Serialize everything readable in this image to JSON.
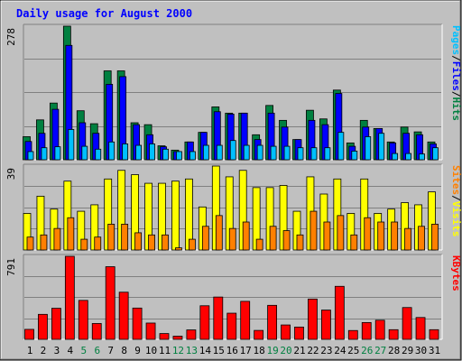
{
  "title": "Daily usage for August 2000",
  "colors": {
    "background": "#c0c0c0",
    "title": "#0000ff",
    "hits": "#008040",
    "files": "#0000ff",
    "pages": "#00c0ff",
    "visits": "#ffff00",
    "sites": "#ff8000",
    "kbytes": "#ff0000",
    "weekend_day_label": "#008040",
    "day_label": "#000000"
  },
  "chart_data": [
    {
      "type": "bar",
      "title": "Hits / Files / Pages",
      "ymax_label": "278",
      "ylim": [
        0,
        278
      ],
      "legend": [
        "Pages",
        "/",
        "Files",
        "/",
        "Hits"
      ],
      "categories": [
        "1",
        "2",
        "3",
        "4",
        "5",
        "6",
        "7",
        "8",
        "9",
        "10",
        "11",
        "12",
        "13",
        "14",
        "15",
        "16",
        "17",
        "18",
        "19",
        "20",
        "21",
        "22",
        "23",
        "24",
        "25",
        "26",
        "27",
        "28",
        "29",
        "30",
        "31"
      ],
      "series": [
        {
          "name": "Hits",
          "values": [
            48,
            83,
            118,
            278,
            102,
            75,
            185,
            185,
            77,
            73,
            29,
            20,
            37,
            57,
            110,
            97,
            97,
            52,
            113,
            82,
            42,
            103,
            85,
            145,
            35,
            82,
            65,
            37,
            68,
            58,
            37
          ]
        },
        {
          "name": "Files",
          "values": [
            38,
            55,
            105,
            238,
            77,
            55,
            157,
            173,
            73,
            52,
            27,
            17,
            37,
            57,
            100,
            95,
            97,
            42,
            97,
            68,
            42,
            82,
            73,
            138,
            28,
            68,
            65,
            35,
            55,
            52,
            33
          ]
        },
        {
          "name": "Pages",
          "values": [
            17,
            25,
            27,
            63,
            28,
            22,
            37,
            33,
            30,
            33,
            22,
            17,
            17,
            30,
            30,
            40,
            30,
            30,
            28,
            28,
            25,
            25,
            25,
            57,
            18,
            48,
            55,
            13,
            13,
            12,
            25
          ]
        }
      ]
    },
    {
      "type": "bar",
      "title": "Visits / Sites",
      "ymax_label": "39",
      "ylim": [
        0,
        39
      ],
      "legend": [
        "Sites",
        "/",
        "Visits"
      ],
      "categories": [
        "1",
        "2",
        "3",
        "4",
        "5",
        "6",
        "7",
        "8",
        "9",
        "10",
        "11",
        "12",
        "13",
        "14",
        "15",
        "16",
        "17",
        "18",
        "19",
        "20",
        "21",
        "22",
        "23",
        "24",
        "25",
        "26",
        "27",
        "28",
        "29",
        "30",
        "31"
      ],
      "series": [
        {
          "name": "Visits",
          "values": [
            17,
            25,
            19,
            32,
            18,
            21,
            33,
            37,
            35,
            31,
            31,
            32,
            33,
            20,
            39,
            34,
            37,
            29,
            29,
            30,
            18,
            34,
            26,
            33,
            17,
            33,
            17,
            19,
            22,
            21,
            27
          ]
        },
        {
          "name": "Sites",
          "values": [
            6,
            7,
            10,
            15,
            5,
            6,
            12,
            12,
            8,
            7,
            7,
            1,
            5,
            11,
            16,
            10,
            13,
            5,
            11,
            9,
            7,
            18,
            13,
            16,
            7,
            15,
            13,
            13,
            10,
            11,
            12
          ]
        }
      ]
    },
    {
      "type": "bar",
      "title": "KBytes",
      "ymax_label": "791",
      "ylim": [
        0,
        791
      ],
      "legend": [
        "KBytes"
      ],
      "categories": [
        "1",
        "2",
        "3",
        "4",
        "5",
        "6",
        "7",
        "8",
        "9",
        "10",
        "11",
        "12",
        "13",
        "14",
        "15",
        "16",
        "17",
        "18",
        "19",
        "20",
        "21",
        "22",
        "23",
        "24",
        "25",
        "26",
        "27",
        "28",
        "29",
        "30",
        "31"
      ],
      "series": [
        {
          "name": "KBytes",
          "values": [
            95,
            238,
            296,
            791,
            371,
            151,
            692,
            449,
            298,
            155,
            55,
            30,
            90,
            320,
            403,
            249,
            362,
            85,
            324,
            137,
            117,
            384,
            279,
            505,
            84,
            160,
            182,
            92,
            303,
            208,
            92
          ]
        }
      ]
    }
  ],
  "x_labels": [
    "1",
    "2",
    "3",
    "4",
    "5",
    "6",
    "7",
    "8",
    "9",
    "10",
    "11",
    "12",
    "13",
    "14",
    "15",
    "16",
    "17",
    "18",
    "19",
    "20",
    "21",
    "22",
    "23",
    "24",
    "25",
    "26",
    "27",
    "28",
    "29",
    "30",
    "31"
  ],
  "weekend_days": [
    "5",
    "6",
    "12",
    "13",
    "19",
    "20",
    "26",
    "27"
  ]
}
